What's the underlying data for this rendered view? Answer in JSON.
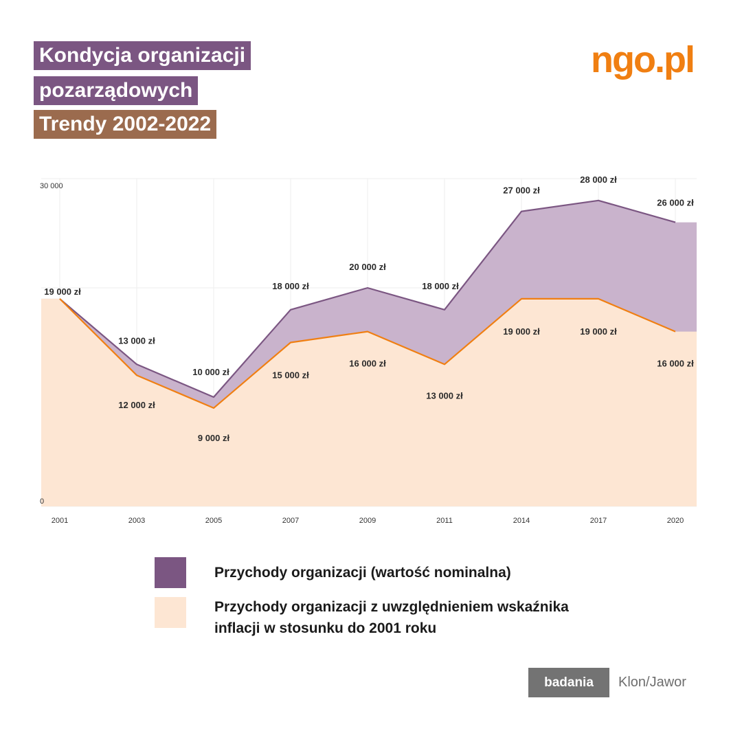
{
  "header": {
    "title_line1": "Kondycja organizacji",
    "title_line2": "pozarządowych",
    "title_line3": "Trendy 2002-2022",
    "logo": "ngo.pl"
  },
  "colors": {
    "title_bg": "#7b5682",
    "subtitle_bg": "#9b6b4e",
    "nominal_line": "#7b5682",
    "nominal_fill": "#c9b3cc",
    "inflation_line": "#f07f12",
    "inflation_fill": "#fde6d3",
    "logo": "#f07f12"
  },
  "chart_data": {
    "type": "area",
    "categories": [
      "2001",
      "2003",
      "2005",
      "2007",
      "2009",
      "2011",
      "2014",
      "2017",
      "2020"
    ],
    "series": [
      {
        "name": "Przychody organizacji (wartość nominalna)",
        "values": [
          19000,
          13000,
          10000,
          18000,
          20000,
          18000,
          27000,
          28000,
          26000
        ],
        "labels": [
          "19 000 zł",
          "13 000 zł",
          "10 000 zł",
          "18 000 zł",
          "20 000 zł",
          "18 000 zł",
          "27 000 zł",
          "28 000 zł",
          "26 000 zł"
        ]
      },
      {
        "name": "Przychody organizacji z uwzględnieniem wskaźnika inflacji w stosunku do 2001 roku",
        "values": [
          19000,
          12000,
          9000,
          15000,
          16000,
          13000,
          19000,
          19000,
          16000
        ],
        "labels": [
          "19 000 zł",
          "12 000 zł",
          "9 000 zł",
          "15 000 zł",
          "16 000 zł",
          "13 000 zł",
          "19 000 zł",
          "19 000 zł",
          "16 000 zł"
        ]
      }
    ],
    "ylim": [
      0,
      30000
    ],
    "y_tick_labels": [
      "0",
      "30 000"
    ],
    "grid": true,
    "legend_position": "bottom"
  },
  "legend": {
    "item1": "Przychody organizacji (wartość nominalna)",
    "item2_line1": "Przychody organizacji z uwzględnieniem wskaźnika",
    "item2_line2": "inflacji w stosunku do 2001 roku"
  },
  "footer": {
    "badge": "badania",
    "source": "Klon/Jawor"
  }
}
